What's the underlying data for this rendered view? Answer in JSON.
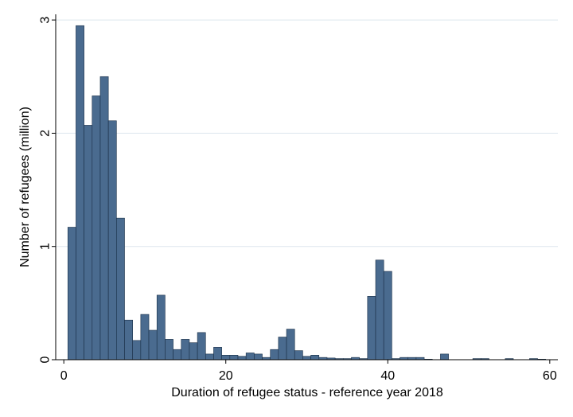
{
  "chart_data": {
    "type": "bar",
    "title": "",
    "xlabel": "Duration of refugee status - reference year 2018",
    "ylabel": "Number of refugees (million)",
    "xlim": [
      -1,
      61
    ],
    "ylim": [
      0,
      3.05
    ],
    "xticks": [
      0,
      20,
      40,
      60
    ],
    "yticks": [
      0,
      1,
      2,
      3
    ],
    "grid": "horizontal",
    "colors": {
      "bar": "#4a6b8f",
      "bar_outline": "#1a2f47",
      "grid": "#dde6ee",
      "axis": "#000000"
    },
    "bar_width": 1,
    "x": [
      1,
      2,
      3,
      4,
      5,
      6,
      7,
      8,
      9,
      10,
      11,
      12,
      13,
      14,
      15,
      16,
      17,
      18,
      19,
      20,
      21,
      22,
      23,
      24,
      25,
      26,
      27,
      28,
      29,
      30,
      31,
      32,
      33,
      34,
      35,
      36,
      37,
      38,
      39,
      40,
      41,
      42,
      43,
      44,
      45,
      46,
      47,
      48,
      49,
      50,
      51,
      52,
      53,
      54,
      55,
      56,
      57,
      58,
      59
    ],
    "values": [
      1.17,
      2.95,
      2.07,
      2.33,
      2.5,
      2.11,
      1.25,
      0.35,
      0.17,
      0.4,
      0.26,
      0.57,
      0.18,
      0.09,
      0.18,
      0.15,
      0.24,
      0.05,
      0.11,
      0.04,
      0.04,
      0.03,
      0.06,
      0.05,
      0.02,
      0.09,
      0.2,
      0.27,
      0.08,
      0.03,
      0.04,
      0.02,
      0.015,
      0.01,
      0.01,
      0.02,
      0.01,
      0.56,
      0.88,
      0.78,
      0.01,
      0.02,
      0.02,
      0.02,
      0.005,
      0.0,
      0.05,
      0.0,
      0.0,
      0.0,
      0.01,
      0.01,
      0.0,
      0.0,
      0.01,
      0.0,
      0.0,
      0.01,
      0.005
    ]
  }
}
